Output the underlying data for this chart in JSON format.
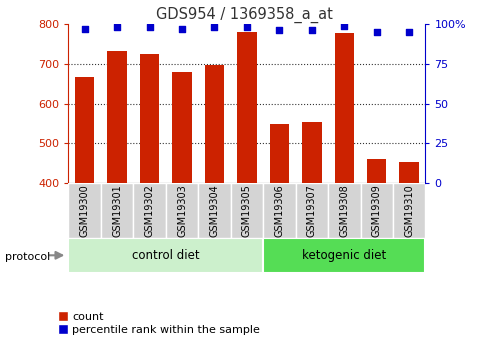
{
  "title": "GDS954 / 1369358_a_at",
  "samples": [
    "GSM19300",
    "GSM19301",
    "GSM19302",
    "GSM19303",
    "GSM19304",
    "GSM19305",
    "GSM19306",
    "GSM19307",
    "GSM19308",
    "GSM19309",
    "GSM19310"
  ],
  "counts": [
    667,
    733,
    725,
    679,
    697,
    780,
    549,
    553,
    778,
    461,
    452
  ],
  "percentile_ranks": [
    97,
    98,
    98,
    97,
    98,
    98,
    96,
    96,
    99,
    95,
    95
  ],
  "y_min": 400,
  "y_max": 800,
  "y_ticks": [
    400,
    500,
    600,
    700,
    800
  ],
  "y2_ticks": [
    0,
    25,
    50,
    75,
    100
  ],
  "bar_color": "#cc2200",
  "dot_color": "#0000cc",
  "bg_plot": "#ffffff",
  "bg_xtick": "#d4d4d4",
  "bg_label_control": "#ccf0cc",
  "bg_label_ketogenic": "#55dd55",
  "n_control": 6,
  "n_ketogenic": 5,
  "control_label": "control diet",
  "ketogenic_label": "ketogenic diet",
  "protocol_label": "protocol",
  "legend_count": "count",
  "legend_percentile": "percentile rank within the sample",
  "left_axis_color": "#cc2200",
  "right_axis_color": "#0000cc"
}
